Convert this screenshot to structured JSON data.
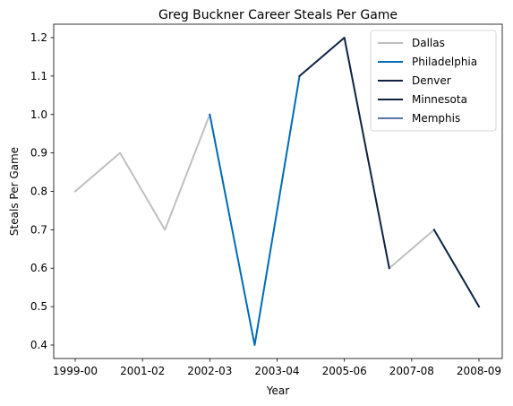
{
  "chart_data": {
    "type": "line",
    "title": "Greg Buckner Career Steals Per Game",
    "xlabel": "Year",
    "ylabel": "Steals Per Game",
    "x_ticks": [
      "1999-00",
      "2001-02",
      "2002-03",
      "2003-04",
      "2005-06",
      "2007-08",
      "2008-09"
    ],
    "y_ticks": [
      "0.4",
      "0.5",
      "0.6",
      "0.7",
      "0.8",
      "0.9",
      "1.0",
      "1.1",
      "1.2"
    ],
    "ylim": [
      0.365,
      1.235
    ],
    "legend_position": "top-right",
    "series": [
      {
        "name": "Dallas",
        "color": "#BFBFBF",
        "points": [
          [
            0,
            0.8
          ],
          [
            1,
            0.9
          ],
          [
            2,
            0.7
          ],
          [
            3,
            1.0
          ]
        ]
      },
      {
        "name": "Dallas",
        "color": "#BFBFBF",
        "points": [
          [
            7,
            0.6
          ],
          [
            8,
            0.7
          ]
        ]
      },
      {
        "name": "Philadelphia",
        "color": "#006BB6",
        "points": [
          [
            3,
            1.0
          ],
          [
            4,
            0.4
          ],
          [
            5,
            1.1
          ]
        ]
      },
      {
        "name": "Denver",
        "color": "#0E2240",
        "points": [
          [
            5,
            1.1
          ],
          [
            6,
            1.2
          ],
          [
            7,
            0.6
          ]
        ]
      },
      {
        "name": "Minnesota",
        "color": "#0C2340",
        "points": [
          [
            8,
            0.7
          ],
          [
            9,
            0.5
          ]
        ]
      }
    ],
    "legend": [
      {
        "label": "Dallas",
        "color": "#BFBFBF"
      },
      {
        "label": "Philadelphia",
        "color": "#006BB6"
      },
      {
        "label": "Denver",
        "color": "#0E2240"
      },
      {
        "label": "Minnesota",
        "color": "#0C2340"
      },
      {
        "label": "Memphis",
        "color": "#5D76A9"
      }
    ]
  }
}
